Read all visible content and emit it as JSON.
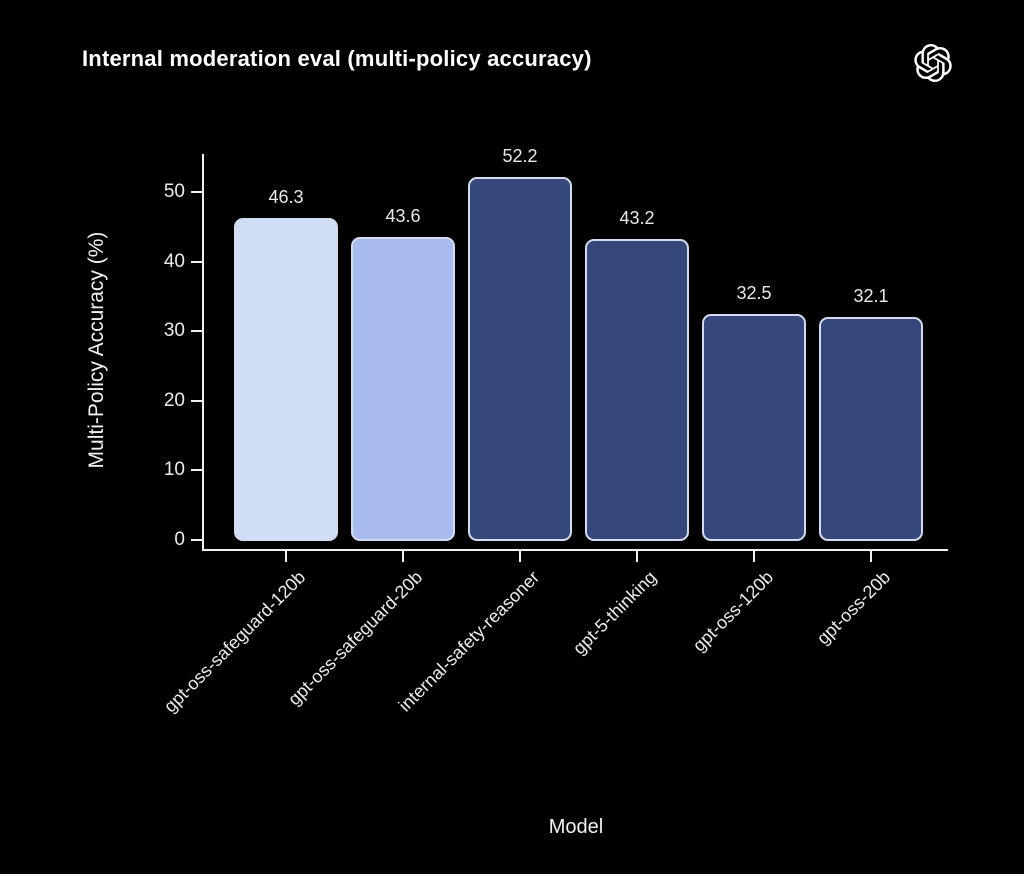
{
  "header": {
    "title": "Internal moderation eval (multi-policy accuracy)",
    "logo_icon": "openai-logo"
  },
  "chart_data": {
    "type": "bar",
    "title": "Internal moderation eval (multi-policy accuracy)",
    "xlabel": "Model",
    "ylabel": "Multi-Policy Accuracy (%)",
    "categories": [
      "gpt-oss-safeguard-120b",
      "gpt-oss-safeguard-20b",
      "internal-safety-reasoner",
      "gpt-5-thinking",
      "gpt-oss-120b",
      "gpt-oss-20b"
    ],
    "values": [
      46.3,
      43.6,
      52.2,
      43.2,
      32.5,
      32.1
    ],
    "value_labels": [
      "46.3",
      "43.6",
      "52.2",
      "43.2",
      "32.5",
      "32.1"
    ],
    "yticks": [
      0,
      10,
      20,
      30,
      40,
      50
    ],
    "ylim": [
      0,
      55
    ],
    "grid": false,
    "legend": null,
    "bar_colors": [
      "#cfddf7",
      "#a7bbef",
      "#35477b",
      "#35477b",
      "#35477b",
      "#35477b"
    ],
    "bar_border_color": "#d3dbf0",
    "axis_color": "#f0f0f0",
    "text_color": "#ffffff",
    "background": "#000000"
  }
}
